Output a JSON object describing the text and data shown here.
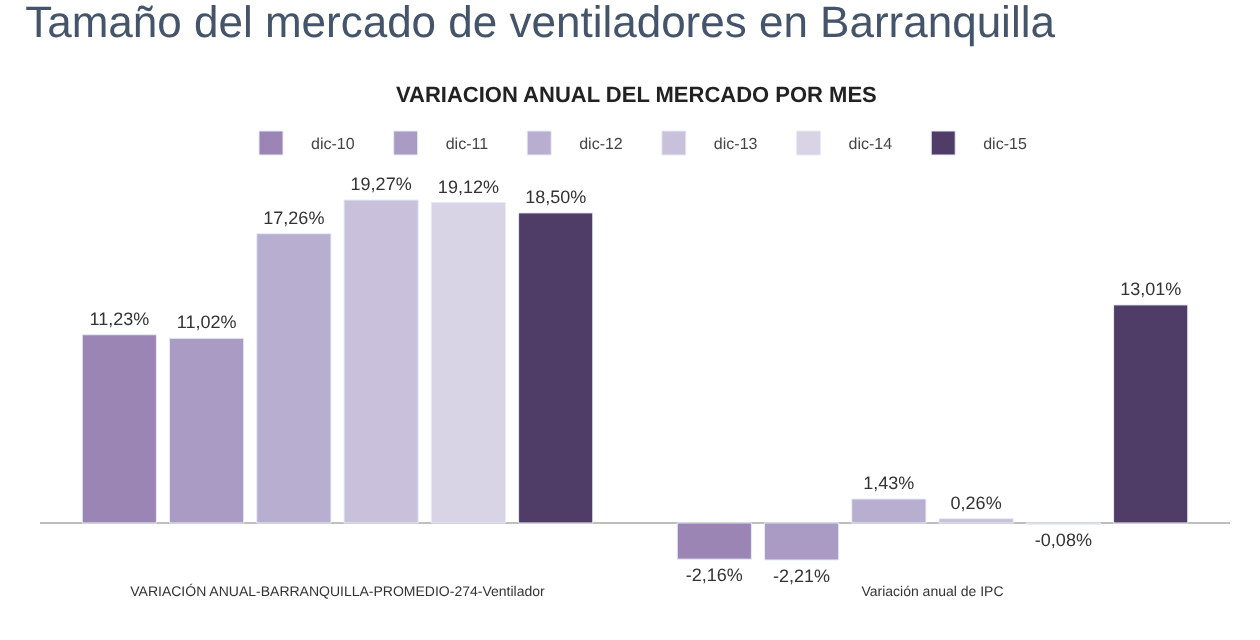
{
  "chart_data": {
    "type": "bar",
    "title": "Tamaño del mercado de ventiladores en Barranquilla",
    "subtitle": "VARIACION ANUAL DEL MERCADO POR MES",
    "categories": [
      "VARIACIÓN ANUAL-BARRANQUILLA-PROMEDIO-274-Ventilador",
      "Variación anual de IPC"
    ],
    "series": [
      {
        "name": "dic-10",
        "color": "#9b85b5",
        "values": [
          11.23,
          -2.16
        ],
        "value_labels": [
          "11,23%",
          "-2,16%"
        ]
      },
      {
        "name": "dic-11",
        "color": "#a99bc4",
        "values": [
          11.02,
          -2.21
        ],
        "value_labels": [
          "11,02%",
          "-2,21%"
        ]
      },
      {
        "name": "dic-12",
        "color": "#b8aed0",
        "values": [
          17.26,
          1.43
        ],
        "value_labels": [
          "17,26%",
          "1,43%"
        ]
      },
      {
        "name": "dic-13",
        "color": "#c9c0dc",
        "values": [
          19.27,
          0.26
        ],
        "value_labels": [
          "19,27%",
          "0,26%"
        ]
      },
      {
        "name": "dic-14",
        "color": "#d9d3e6",
        "values": [
          19.12,
          -0.08
        ],
        "value_labels": [
          "19,12%",
          "-0,08%"
        ]
      },
      {
        "name": "dic-15",
        "color": "#4f3d68",
        "values": [
          18.5,
          13.01
        ],
        "value_labels": [
          "18,50%",
          "13,01%"
        ]
      }
    ],
    "legend": "top"
  }
}
